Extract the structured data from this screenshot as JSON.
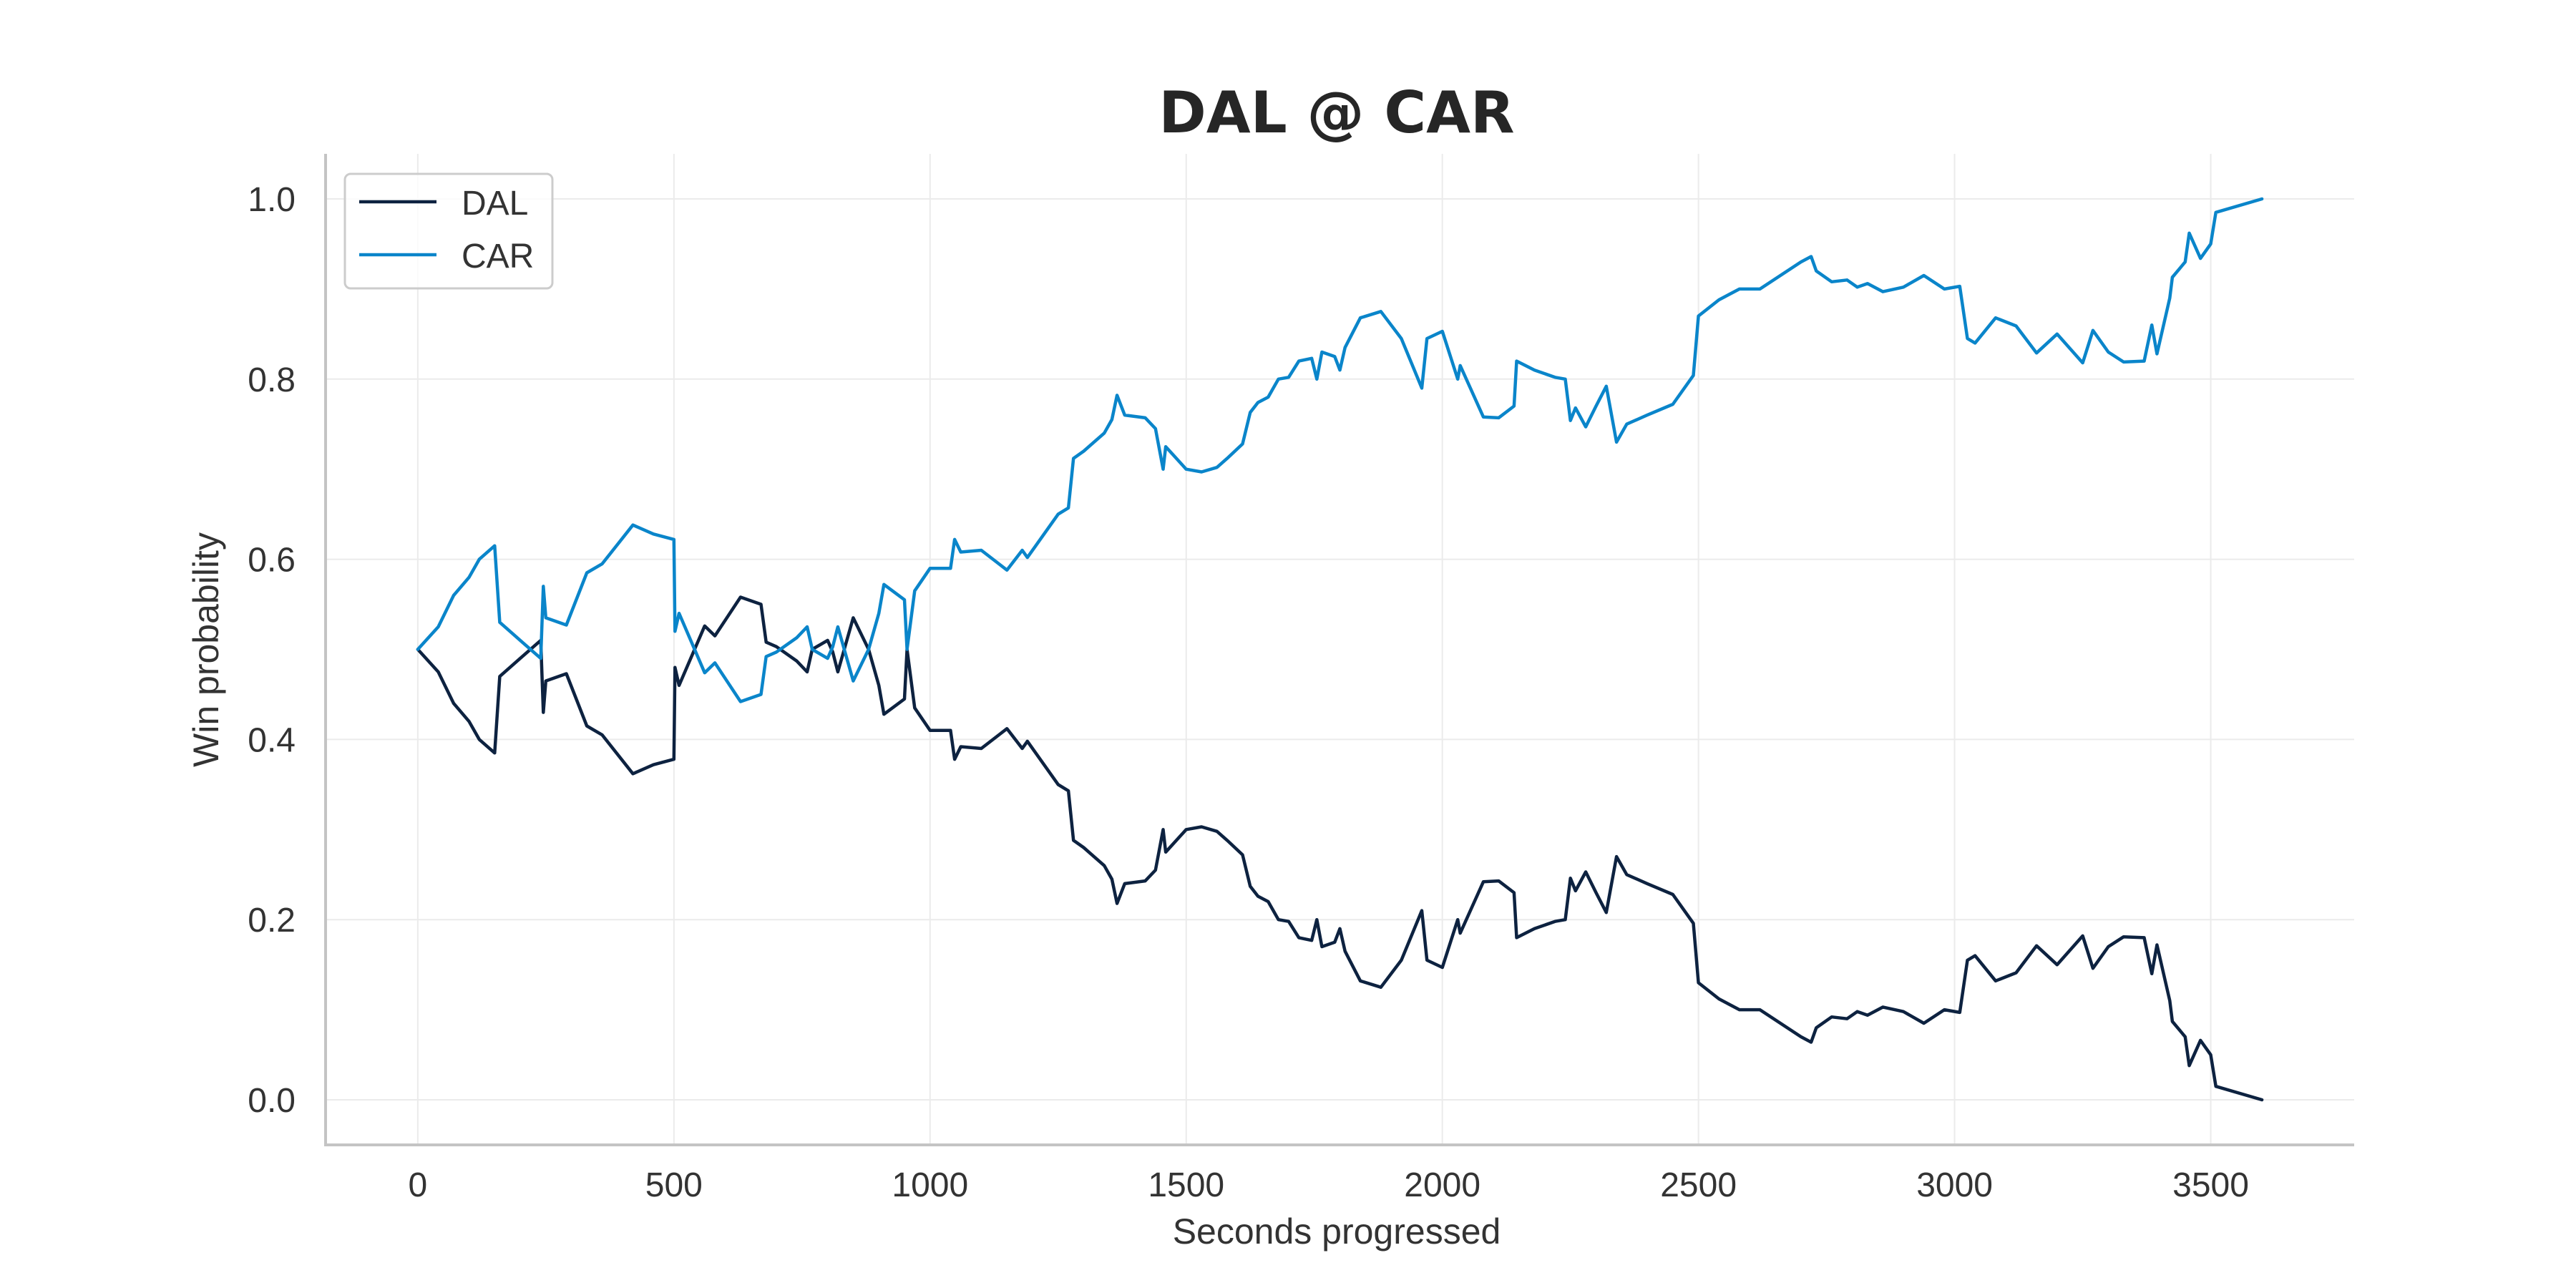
{
  "chart_data": {
    "type": "line",
    "title": "DAL @ CAR",
    "xlabel": "Seconds progressed",
    "ylabel": "Win probability",
    "xlim": [
      -180,
      3780
    ],
    "ylim": [
      -0.05,
      1.05
    ],
    "xticks": [
      0,
      500,
      1000,
      1500,
      2000,
      2500,
      3000,
      3500
    ],
    "xtick_labels": [
      "0",
      "500",
      "1000",
      "1500",
      "2000",
      "2500",
      "3000",
      "3500"
    ],
    "yticks": [
      0.0,
      0.2,
      0.4,
      0.6,
      0.8,
      1.0
    ],
    "ytick_labels": [
      "0.0",
      "0.2",
      "0.4",
      "0.6",
      "0.8",
      "1.0"
    ],
    "grid": true,
    "legend_position": "top-left",
    "colors": {
      "DAL": "#0d2240",
      "CAR": "#0a85ca"
    },
    "series": [
      {
        "name": "DAL",
        "color": "#0d2240",
        "points": [
          [
            0,
            0.5
          ],
          [
            40,
            0.475
          ],
          [
            70,
            0.44
          ],
          [
            100,
            0.42
          ],
          [
            120,
            0.4
          ],
          [
            150,
            0.385
          ],
          [
            160,
            0.47
          ],
          [
            200,
            0.49
          ],
          [
            240,
            0.51
          ],
          [
            245,
            0.43
          ],
          [
            250,
            0.465
          ],
          [
            290,
            0.473
          ],
          [
            330,
            0.415
          ],
          [
            360,
            0.405
          ],
          [
            420,
            0.362
          ],
          [
            460,
            0.372
          ],
          [
            500,
            0.378
          ],
          [
            502,
            0.48
          ],
          [
            510,
            0.46
          ],
          [
            560,
            0.526
          ],
          [
            580,
            0.515
          ],
          [
            630,
            0.558
          ],
          [
            670,
            0.55
          ],
          [
            680,
            0.508
          ],
          [
            700,
            0.503
          ],
          [
            740,
            0.487
          ],
          [
            760,
            0.475
          ],
          [
            770,
            0.5
          ],
          [
            800,
            0.51
          ],
          [
            810,
            0.497
          ],
          [
            820,
            0.475
          ],
          [
            850,
            0.535
          ],
          [
            880,
            0.5
          ],
          [
            900,
            0.46
          ],
          [
            910,
            0.428
          ],
          [
            950,
            0.445
          ],
          [
            955,
            0.5
          ],
          [
            970,
            0.435
          ],
          [
            1000,
            0.41
          ],
          [
            1040,
            0.41
          ],
          [
            1048,
            0.378
          ],
          [
            1060,
            0.392
          ],
          [
            1100,
            0.39
          ],
          [
            1150,
            0.412
          ],
          [
            1180,
            0.39
          ],
          [
            1190,
            0.398
          ],
          [
            1250,
            0.35
          ],
          [
            1270,
            0.343
          ],
          [
            1280,
            0.288
          ],
          [
            1300,
            0.28
          ],
          [
            1340,
            0.26
          ],
          [
            1355,
            0.245
          ],
          [
            1365,
            0.218
          ],
          [
            1380,
            0.24
          ],
          [
            1420,
            0.243
          ],
          [
            1440,
            0.255
          ],
          [
            1455,
            0.3
          ],
          [
            1460,
            0.275
          ],
          [
            1500,
            0.3
          ],
          [
            1530,
            0.303
          ],
          [
            1560,
            0.298
          ],
          [
            1580,
            0.288
          ],
          [
            1610,
            0.272
          ],
          [
            1625,
            0.237
          ],
          [
            1640,
            0.226
          ],
          [
            1660,
            0.22
          ],
          [
            1680,
            0.2
          ],
          [
            1700,
            0.198
          ],
          [
            1720,
            0.18
          ],
          [
            1745,
            0.177
          ],
          [
            1755,
            0.2
          ],
          [
            1765,
            0.17
          ],
          [
            1790,
            0.175
          ],
          [
            1800,
            0.19
          ],
          [
            1810,
            0.165
          ],
          [
            1840,
            0.132
          ],
          [
            1880,
            0.125
          ],
          [
            1920,
            0.155
          ],
          [
            1960,
            0.21
          ],
          [
            1970,
            0.155
          ],
          [
            2000,
            0.147
          ],
          [
            2030,
            0.2
          ],
          [
            2035,
            0.185
          ],
          [
            2080,
            0.242
          ],
          [
            2110,
            0.243
          ],
          [
            2140,
            0.23
          ],
          [
            2145,
            0.18
          ],
          [
            2180,
            0.19
          ],
          [
            2220,
            0.198
          ],
          [
            2240,
            0.2
          ],
          [
            2250,
            0.246
          ],
          [
            2260,
            0.232
          ],
          [
            2280,
            0.253
          ],
          [
            2300,
            0.23
          ],
          [
            2320,
            0.208
          ],
          [
            2340,
            0.27
          ],
          [
            2360,
            0.25
          ],
          [
            2400,
            0.24
          ],
          [
            2450,
            0.228
          ],
          [
            2490,
            0.196
          ],
          [
            2500,
            0.13
          ],
          [
            2540,
            0.112
          ],
          [
            2580,
            0.1
          ],
          [
            2620,
            0.1
          ],
          [
            2700,
            0.07
          ],
          [
            2720,
            0.064
          ],
          [
            2730,
            0.08
          ],
          [
            2760,
            0.092
          ],
          [
            2790,
            0.09
          ],
          [
            2810,
            0.098
          ],
          [
            2830,
            0.094
          ],
          [
            2860,
            0.103
          ],
          [
            2900,
            0.098
          ],
          [
            2940,
            0.085
          ],
          [
            2980,
            0.1
          ],
          [
            3010,
            0.097
          ],
          [
            3025,
            0.155
          ],
          [
            3040,
            0.16
          ],
          [
            3080,
            0.132
          ],
          [
            3120,
            0.141
          ],
          [
            3160,
            0.171
          ],
          [
            3200,
            0.15
          ],
          [
            3250,
            0.182
          ],
          [
            3270,
            0.146
          ],
          [
            3300,
            0.17
          ],
          [
            3330,
            0.181
          ],
          [
            3370,
            0.18
          ],
          [
            3385,
            0.14
          ],
          [
            3395,
            0.172
          ],
          [
            3420,
            0.11
          ],
          [
            3425,
            0.087
          ],
          [
            3450,
            0.07
          ],
          [
            3458,
            0.038
          ],
          [
            3480,
            0.066
          ],
          [
            3500,
            0.05
          ],
          [
            3510,
            0.015
          ],
          [
            3600,
            0.0
          ]
        ]
      },
      {
        "name": "CAR",
        "color": "#0a85ca",
        "points": [
          [
            0,
            0.5
          ],
          [
            40,
            0.525
          ],
          [
            70,
            0.56
          ],
          [
            100,
            0.58
          ],
          [
            120,
            0.6
          ],
          [
            150,
            0.615
          ],
          [
            160,
            0.53
          ],
          [
            200,
            0.51
          ],
          [
            240,
            0.49
          ],
          [
            245,
            0.57
          ],
          [
            250,
            0.535
          ],
          [
            290,
            0.527
          ],
          [
            330,
            0.585
          ],
          [
            360,
            0.595
          ],
          [
            420,
            0.638
          ],
          [
            460,
            0.628
          ],
          [
            500,
            0.622
          ],
          [
            502,
            0.52
          ],
          [
            510,
            0.54
          ],
          [
            560,
            0.474
          ],
          [
            580,
            0.485
          ],
          [
            630,
            0.442
          ],
          [
            670,
            0.45
          ],
          [
            680,
            0.492
          ],
          [
            700,
            0.497
          ],
          [
            740,
            0.513
          ],
          [
            760,
            0.525
          ],
          [
            770,
            0.5
          ],
          [
            800,
            0.49
          ],
          [
            810,
            0.503
          ],
          [
            820,
            0.525
          ],
          [
            850,
            0.465
          ],
          [
            880,
            0.5
          ],
          [
            900,
            0.54
          ],
          [
            910,
            0.572
          ],
          [
            950,
            0.555
          ],
          [
            955,
            0.5
          ],
          [
            970,
            0.565
          ],
          [
            1000,
            0.59
          ],
          [
            1040,
            0.59
          ],
          [
            1048,
            0.622
          ],
          [
            1060,
            0.608
          ],
          [
            1100,
            0.61
          ],
          [
            1150,
            0.588
          ],
          [
            1180,
            0.61
          ],
          [
            1190,
            0.602
          ],
          [
            1250,
            0.65
          ],
          [
            1270,
            0.657
          ],
          [
            1280,
            0.712
          ],
          [
            1300,
            0.72
          ],
          [
            1340,
            0.74
          ],
          [
            1355,
            0.755
          ],
          [
            1365,
            0.782
          ],
          [
            1380,
            0.76
          ],
          [
            1420,
            0.757
          ],
          [
            1440,
            0.745
          ],
          [
            1455,
            0.7
          ],
          [
            1460,
            0.725
          ],
          [
            1500,
            0.7
          ],
          [
            1530,
            0.697
          ],
          [
            1560,
            0.702
          ],
          [
            1580,
            0.712
          ],
          [
            1610,
            0.728
          ],
          [
            1625,
            0.763
          ],
          [
            1640,
            0.774
          ],
          [
            1660,
            0.78
          ],
          [
            1680,
            0.8
          ],
          [
            1700,
            0.802
          ],
          [
            1720,
            0.82
          ],
          [
            1745,
            0.823
          ],
          [
            1755,
            0.8
          ],
          [
            1765,
            0.83
          ],
          [
            1790,
            0.825
          ],
          [
            1800,
            0.81
          ],
          [
            1810,
            0.835
          ],
          [
            1840,
            0.868
          ],
          [
            1880,
            0.875
          ],
          [
            1920,
            0.845
          ],
          [
            1960,
            0.79
          ],
          [
            1970,
            0.845
          ],
          [
            2000,
            0.853
          ],
          [
            2030,
            0.8
          ],
          [
            2035,
            0.815
          ],
          [
            2080,
            0.758
          ],
          [
            2110,
            0.757
          ],
          [
            2140,
            0.77
          ],
          [
            2145,
            0.82
          ],
          [
            2180,
            0.81
          ],
          [
            2220,
            0.802
          ],
          [
            2240,
            0.8
          ],
          [
            2250,
            0.754
          ],
          [
            2260,
            0.768
          ],
          [
            2280,
            0.747
          ],
          [
            2300,
            0.77
          ],
          [
            2320,
            0.792
          ],
          [
            2340,
            0.73
          ],
          [
            2360,
            0.75
          ],
          [
            2400,
            0.76
          ],
          [
            2450,
            0.772
          ],
          [
            2490,
            0.804
          ],
          [
            2500,
            0.87
          ],
          [
            2540,
            0.888
          ],
          [
            2580,
            0.9
          ],
          [
            2620,
            0.9
          ],
          [
            2700,
            0.93
          ],
          [
            2720,
            0.936
          ],
          [
            2730,
            0.92
          ],
          [
            2760,
            0.908
          ],
          [
            2790,
            0.91
          ],
          [
            2810,
            0.902
          ],
          [
            2830,
            0.906
          ],
          [
            2860,
            0.897
          ],
          [
            2900,
            0.902
          ],
          [
            2940,
            0.915
          ],
          [
            2980,
            0.9
          ],
          [
            3010,
            0.903
          ],
          [
            3025,
            0.845
          ],
          [
            3040,
            0.84
          ],
          [
            3080,
            0.868
          ],
          [
            3120,
            0.859
          ],
          [
            3160,
            0.829
          ],
          [
            3200,
            0.85
          ],
          [
            3250,
            0.818
          ],
          [
            3270,
            0.854
          ],
          [
            3300,
            0.83
          ],
          [
            3330,
            0.819
          ],
          [
            3370,
            0.82
          ],
          [
            3385,
            0.86
          ],
          [
            3395,
            0.828
          ],
          [
            3420,
            0.89
          ],
          [
            3425,
            0.913
          ],
          [
            3450,
            0.93
          ],
          [
            3458,
            0.962
          ],
          [
            3480,
            0.934
          ],
          [
            3500,
            0.95
          ],
          [
            3510,
            0.985
          ],
          [
            3600,
            1.0
          ]
        ]
      }
    ]
  }
}
